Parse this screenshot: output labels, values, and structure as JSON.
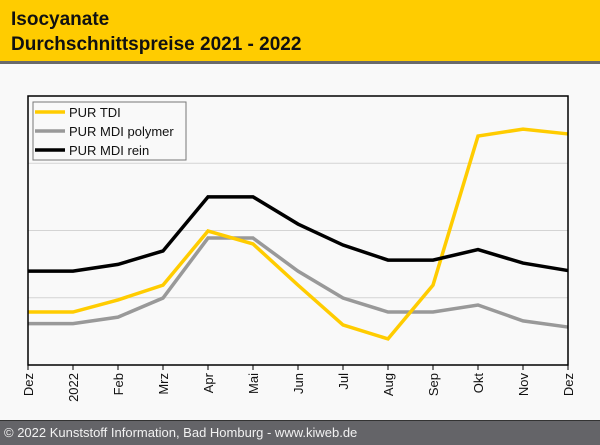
{
  "header": {
    "title_line1": "Isocyanate",
    "title_line2": "Durchschnittspreise 2021 - 2022"
  },
  "footer": {
    "text": "© 2022 Kunststoff Information, Bad Homburg - www.kiweb.de"
  },
  "colors": {
    "header_bg": "#ffcc00",
    "footer_bg": "#646468",
    "tdi": "#ffcc00",
    "mdi_polymer": "#999999",
    "mdi_rein": "#000000"
  },
  "chart_data": {
    "type": "line",
    "title": "Isocyanate Durchschnittspreise 2021 - 2022",
    "xlabel": "",
    "ylabel": "",
    "y_note": "no y-axis labels shown; values are relative index (plot bottom = 0, top = 100)",
    "ylim": [
      0,
      100
    ],
    "y_gridlines": [
      25,
      50,
      75
    ],
    "grid": true,
    "legend_position": "top-left",
    "categories": [
      "Dez",
      "2022",
      "Feb",
      "Mrz",
      "Apr",
      "Mai",
      "Jun",
      "Jul",
      "Aug",
      "Sep",
      "Okt",
      "Nov",
      "Dez"
    ],
    "series": [
      {
        "name": "PUR TDI",
        "color": "#ffcc00",
        "values": [
          19.7,
          19.7,
          24.2,
          29.7,
          49.8,
          45.0,
          29.7,
          14.9,
          9.7,
          29.7,
          85.1,
          87.7,
          85.9
        ]
      },
      {
        "name": "PUR MDI polymer",
        "color": "#999999",
        "values": [
          15.4,
          15.4,
          17.8,
          24.9,
          47.2,
          47.2,
          34.9,
          24.9,
          19.7,
          19.7,
          22.3,
          16.4,
          14.1
        ]
      },
      {
        "name": "PUR MDI rein",
        "color": "#000000",
        "values": [
          34.9,
          34.9,
          37.4,
          42.4,
          62.5,
          62.5,
          52.4,
          44.6,
          39.0,
          39.0,
          42.9,
          37.9,
          35.1
        ]
      }
    ]
  }
}
